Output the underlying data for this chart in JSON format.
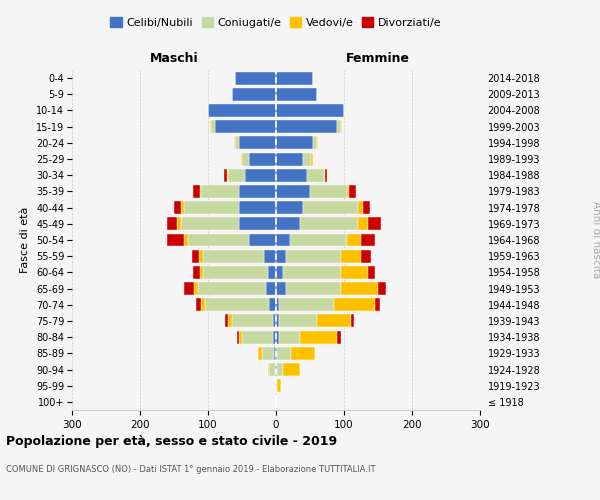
{
  "age_groups": [
    "100+",
    "95-99",
    "90-94",
    "85-89",
    "80-84",
    "75-79",
    "70-74",
    "65-69",
    "60-64",
    "55-59",
    "50-54",
    "45-49",
    "40-44",
    "35-39",
    "30-34",
    "25-29",
    "20-24",
    "15-19",
    "10-14",
    "5-9",
    "0-4"
  ],
  "birth_years": [
    "≤ 1918",
    "1919-1923",
    "1924-1928",
    "1929-1933",
    "1934-1938",
    "1939-1943",
    "1944-1948",
    "1949-1953",
    "1954-1958",
    "1959-1963",
    "1964-1968",
    "1969-1973",
    "1974-1978",
    "1979-1983",
    "1984-1988",
    "1989-1993",
    "1994-1998",
    "1999-2003",
    "2004-2008",
    "2009-2013",
    "2014-2018"
  ],
  "males": {
    "celibi": [
      0,
      0,
      2,
      3,
      5,
      5,
      10,
      15,
      12,
      18,
      40,
      55,
      55,
      55,
      45,
      40,
      55,
      90,
      100,
      65,
      60
    ],
    "coniugati": [
      0,
      1,
      8,
      18,
      45,
      60,
      95,
      100,
      95,
      90,
      90,
      85,
      80,
      55,
      25,
      10,
      5,
      5,
      0,
      0,
      0
    ],
    "vedovi": [
      0,
      0,
      2,
      5,
      5,
      5,
      5,
      5,
      5,
      5,
      5,
      5,
      5,
      2,
      2,
      2,
      2,
      2,
      0,
      0,
      0
    ],
    "divorziati": [
      0,
      0,
      0,
      0,
      3,
      5,
      8,
      15,
      10,
      10,
      25,
      15,
      10,
      10,
      5,
      0,
      0,
      0,
      0,
      0,
      0
    ]
  },
  "females": {
    "nubili": [
      0,
      0,
      2,
      2,
      5,
      5,
      5,
      15,
      10,
      15,
      20,
      35,
      40,
      50,
      45,
      40,
      55,
      90,
      100,
      60,
      55
    ],
    "coniugate": [
      0,
      2,
      8,
      20,
      30,
      55,
      80,
      80,
      85,
      80,
      85,
      85,
      80,
      55,
      25,
      12,
      5,
      5,
      0,
      0,
      0
    ],
    "vedove": [
      0,
      5,
      25,
      35,
      55,
      50,
      60,
      55,
      40,
      30,
      20,
      15,
      8,
      3,
      2,
      2,
      2,
      2,
      0,
      0,
      0
    ],
    "divorziate": [
      0,
      0,
      0,
      0,
      5,
      5,
      8,
      12,
      10,
      15,
      20,
      20,
      10,
      10,
      3,
      0,
      0,
      0,
      0,
      0,
      0
    ]
  },
  "color_celibi": "#4472C4",
  "color_coniugati": "#c5d9a0",
  "color_vedovi": "#ffc000",
  "color_divorziati": "#cc0000",
  "title": "Popolazione per età, sesso e stato civile - 2019",
  "subtitle": "COMUNE DI GRIGNASCO (NO) - Dati ISTAT 1° gennaio 2019 - Elaborazione TUTTITALIA.IT",
  "xlabel_left": "Maschi",
  "xlabel_right": "Femmine",
  "ylabel_left": "Fasce di età",
  "ylabel_right": "Anni di nascita",
  "xlim": 300,
  "bg_color": "#f5f5f5",
  "plot_bg": "#f5f5f5",
  "grid_color": "#cccccc"
}
